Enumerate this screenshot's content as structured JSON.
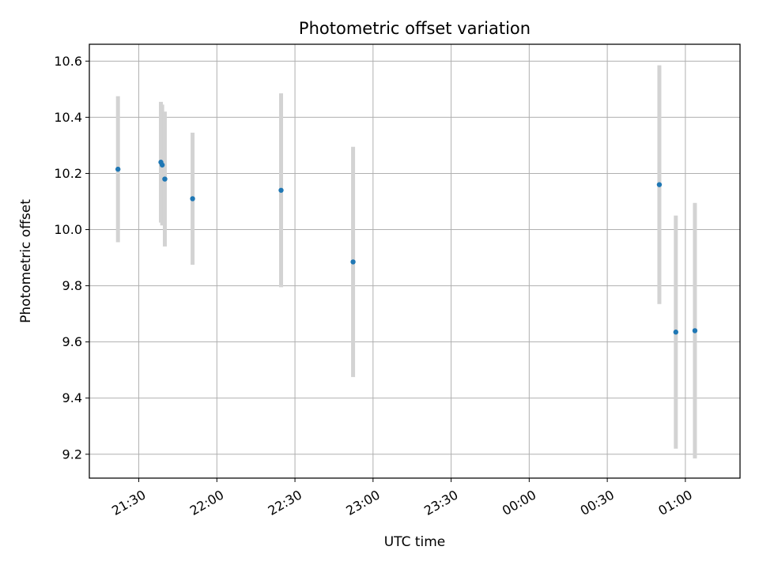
{
  "chart_data": {
    "type": "scatter",
    "title": "Photometric offset variation",
    "xlabel": "UTC time",
    "ylabel": "Photometric offset",
    "grid": true,
    "xlim": [
      "21:11",
      "01:21"
    ],
    "ylim": [
      9.115,
      10.66
    ],
    "x_ticks": [
      "21:30",
      "22:00",
      "22:30",
      "23:00",
      "23:30",
      "00:00",
      "00:30",
      "01:00"
    ],
    "y_ticks": [
      "9.2",
      "9.4",
      "9.6",
      "9.8",
      "10.0",
      "10.2",
      "10.4",
      "10.6"
    ],
    "errorbar_color": "#d3d3d3",
    "marker_color": "#1f77b4",
    "series": [
      {
        "x": [
          "21:22:00",
          "21:38:30",
          "21:39:00",
          "21:40:00",
          "21:50:40",
          "22:24:40",
          "22:52:20",
          "00:50:00",
          "00:56:20",
          "01:03:40"
        ],
        "y": [
          10.215,
          10.24,
          10.23,
          10.18,
          10.11,
          10.14,
          9.885,
          10.16,
          9.635,
          9.64
        ],
        "yerr": [
          0.26,
          0.215,
          0.215,
          0.24,
          0.235,
          0.345,
          0.41,
          0.425,
          0.415,
          0.455
        ]
      }
    ]
  }
}
